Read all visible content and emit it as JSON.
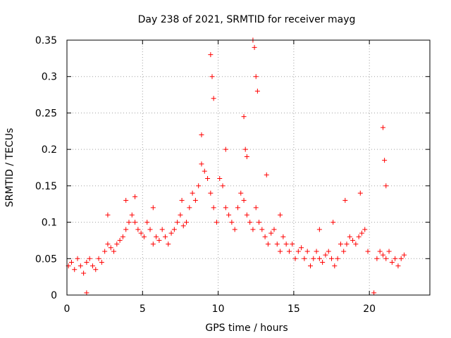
{
  "chart_data": {
    "type": "scatter",
    "title": "Day 238 of 2021, SRMTID for receiver mayg",
    "xlabel": "GPS time / hours",
    "ylabel": "SRMTID / TECUs",
    "xlim": [
      0,
      24
    ],
    "ylim": [
      0,
      0.35
    ],
    "xticks": [
      0,
      5,
      10,
      15,
      20
    ],
    "xtick_labels": [
      "0",
      "5",
      "10",
      "15",
      "20"
    ],
    "yticks": [
      0,
      0.05,
      0.1,
      0.15,
      0.2,
      0.25,
      0.3,
      0.35
    ],
    "ytick_labels": [
      "0",
      "0.05",
      "0.1",
      "0.15",
      "0.2",
      "0.25",
      "0.3",
      "0.35"
    ],
    "grid": true,
    "marker": "+",
    "series": [
      {
        "name": "SRMTID",
        "color": "#ff0000",
        "x": [
          0.1,
          0.3,
          0.5,
          0.7,
          0.9,
          1.1,
          1.3,
          1.5,
          1.7,
          1.9,
          2.1,
          2.3,
          2.5,
          2.7,
          2.9,
          3.1,
          3.3,
          3.5,
          3.7,
          3.9,
          4.1,
          4.3,
          4.5,
          4.7,
          4.9,
          5.1,
          5.3,
          5.5,
          5.7,
          5.9,
          6.1,
          6.3,
          6.5,
          6.7,
          6.9,
          7.1,
          7.3,
          7.5,
          7.7,
          7.9,
          8.1,
          8.3,
          8.5,
          8.7,
          8.9,
          9.1,
          9.3,
          9.5,
          9.7,
          9.9,
          10.1,
          10.3,
          10.5,
          10.7,
          10.9,
          11.1,
          11.3,
          11.5,
          11.7,
          11.9,
          12.1,
          12.3,
          12.5,
          12.7,
          12.9,
          13.1,
          13.3,
          13.5,
          13.7,
          13.9,
          14.1,
          14.3,
          14.5,
          14.7,
          14.9,
          15.1,
          15.3,
          15.5,
          15.7,
          15.9,
          16.1,
          16.3,
          16.5,
          16.7,
          16.9,
          17.1,
          17.3,
          17.5,
          17.7,
          17.9,
          18.1,
          18.3,
          18.5,
          18.7,
          18.9,
          19.1,
          19.3,
          19.5,
          19.7,
          19.9,
          20.5,
          20.7,
          20.9,
          21.1,
          21.3,
          21.5,
          21.7,
          21.9,
          22.1,
          22.3,
          9.5,
          9.6,
          9.7,
          12.3,
          12.4,
          12.5,
          12.6,
          11.7,
          11.8,
          20.9,
          21.0,
          21.1,
          8.9,
          10.5,
          11.9,
          13.2,
          4.5,
          3.9,
          7.6,
          18.4,
          19.4,
          1.3,
          20.3,
          2.7,
          5.7,
          14.1,
          16.7,
          17.6
        ],
        "y": [
          0.04,
          0.045,
          0.035,
          0.05,
          0.04,
          0.03,
          0.045,
          0.05,
          0.04,
          0.035,
          0.05,
          0.045,
          0.06,
          0.07,
          0.065,
          0.06,
          0.07,
          0.075,
          0.08,
          0.09,
          0.1,
          0.11,
          0.1,
          0.09,
          0.085,
          0.08,
          0.1,
          0.09,
          0.07,
          0.08,
          0.075,
          0.09,
          0.08,
          0.07,
          0.085,
          0.09,
          0.1,
          0.11,
          0.095,
          0.1,
          0.12,
          0.14,
          0.13,
          0.15,
          0.18,
          0.17,
          0.16,
          0.14,
          0.12,
          0.1,
          0.16,
          0.15,
          0.12,
          0.11,
          0.1,
          0.09,
          0.12,
          0.14,
          0.13,
          0.11,
          0.1,
          0.09,
          0.12,
          0.1,
          0.09,
          0.08,
          0.07,
          0.085,
          0.09,
          0.07,
          0.06,
          0.08,
          0.07,
          0.06,
          0.07,
          0.05,
          0.06,
          0.065,
          0.05,
          0.06,
          0.04,
          0.05,
          0.06,
          0.05,
          0.045,
          0.055,
          0.06,
          0.05,
          0.04,
          0.05,
          0.07,
          0.06,
          0.07,
          0.08,
          0.075,
          0.07,
          0.08,
          0.085,
          0.09,
          0.06,
          0.05,
          0.06,
          0.055,
          0.05,
          0.06,
          0.045,
          0.05,
          0.04,
          0.05,
          0.055,
          0.33,
          0.3,
          0.27,
          0.35,
          0.34,
          0.3,
          0.28,
          0.245,
          0.2,
          0.23,
          0.185,
          0.15,
          0.22,
          0.2,
          0.19,
          0.165,
          0.135,
          0.13,
          0.13,
          0.13,
          0.14,
          0.003,
          0.003,
          0.11,
          0.12,
          0.11,
          0.09,
          0.1
        ]
      }
    ]
  }
}
